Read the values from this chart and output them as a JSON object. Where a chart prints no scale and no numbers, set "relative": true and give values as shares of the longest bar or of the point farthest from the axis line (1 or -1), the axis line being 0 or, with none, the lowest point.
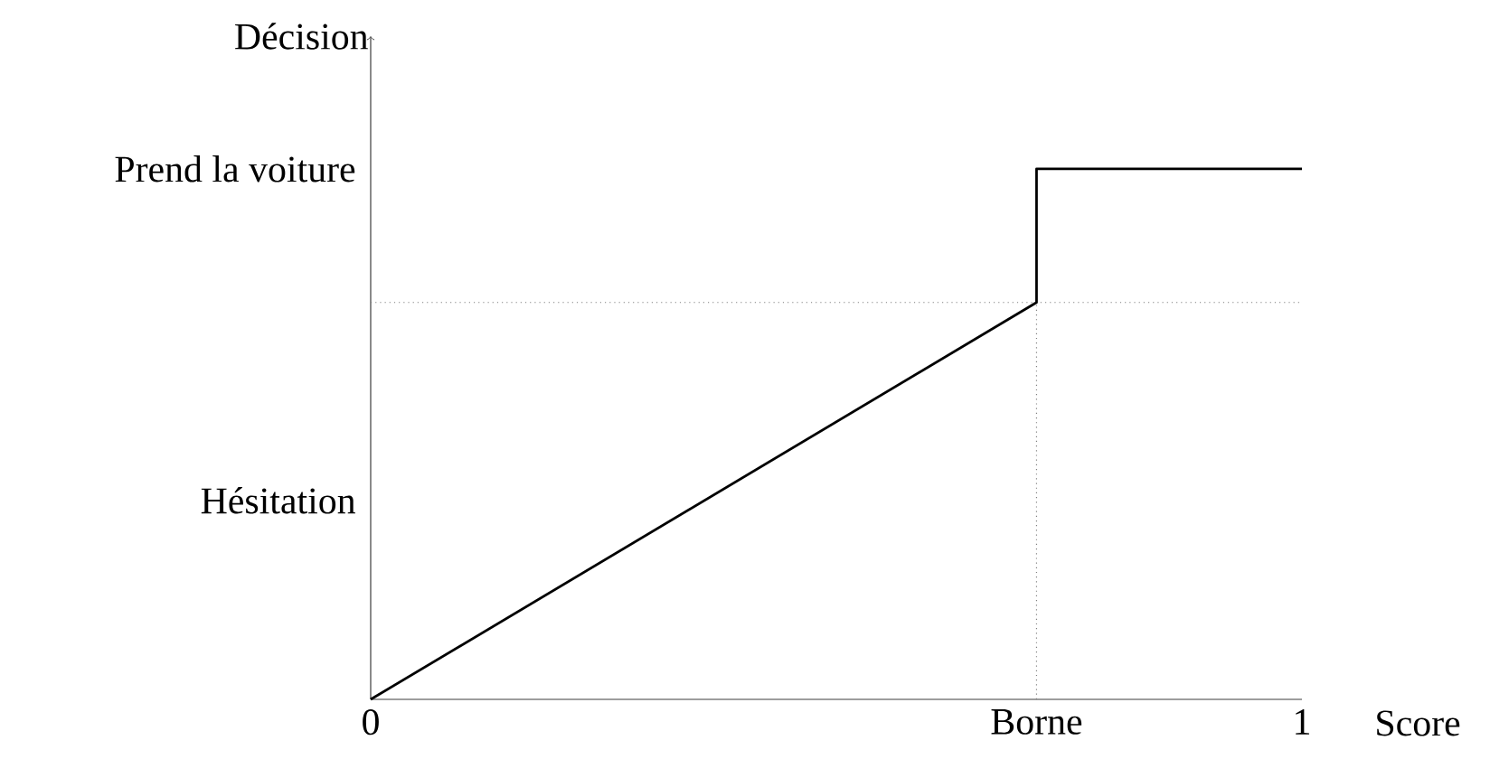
{
  "chart_data": {
    "type": "line",
    "xlabel": "Score",
    "ylabel": "Décision",
    "series": [
      {
        "color": "#000000",
        "x": [
          0,
          0.715,
          0.715,
          1
        ],
        "values": [
          0,
          0.748,
          1,
          1
        ]
      }
    ],
    "xlim": [
      0,
      1
    ],
    "xticks": [
      0,
      {
        "value": 0.715,
        "label": "Borne"
      },
      1
    ],
    "annotations": [
      "Hésitation",
      "Prend la voiture"
    ],
    "ref_lines": [
      {
        "axis": "y",
        "value": 0.748,
        "color": "#808080",
        "line_style": "dotted"
      },
      {
        "axis": "x",
        "value": 0.715,
        "color": "#808080",
        "line_style": "dotted"
      }
    ],
    "relative": true,
    "grid": false,
    "marker": "none",
    "line_style": "solid"
  }
}
